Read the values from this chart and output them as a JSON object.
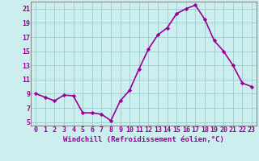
{
  "x": [
    0,
    1,
    2,
    3,
    4,
    5,
    6,
    7,
    8,
    9,
    10,
    11,
    12,
    13,
    14,
    15,
    16,
    17,
    18,
    19,
    20,
    21,
    22,
    23
  ],
  "y": [
    9,
    8.5,
    8,
    8.8,
    8.7,
    6.3,
    6.3,
    6.1,
    5.2,
    8.0,
    9.5,
    12.5,
    15.3,
    17.3,
    18.3,
    20.3,
    21.0,
    21.5,
    19.5,
    16.5,
    15.0,
    13.0,
    10.5,
    10.0
  ],
  "line_color": "#990099",
  "marker": "D",
  "marker_size": 2.2,
  "bg_color": "#cceeee",
  "grid_color": "#99cccc",
  "xlim": [
    -0.5,
    23.5
  ],
  "ylim": [
    4.5,
    22.0
  ],
  "yticks": [
    5,
    7,
    9,
    11,
    13,
    15,
    17,
    19,
    21
  ],
  "xticks": [
    0,
    1,
    2,
    3,
    4,
    5,
    6,
    7,
    8,
    9,
    10,
    11,
    12,
    13,
    14,
    15,
    16,
    17,
    18,
    19,
    20,
    21,
    22,
    23
  ],
  "xlabel": "Windchill (Refroidissement éolien,°C)",
  "tick_color": "#990099",
  "xlabel_color": "#990099",
  "xlabel_fontsize": 6.5,
  "tick_fontsize": 6.0,
  "linewidth": 1.2,
  "border_color": "#888888"
}
